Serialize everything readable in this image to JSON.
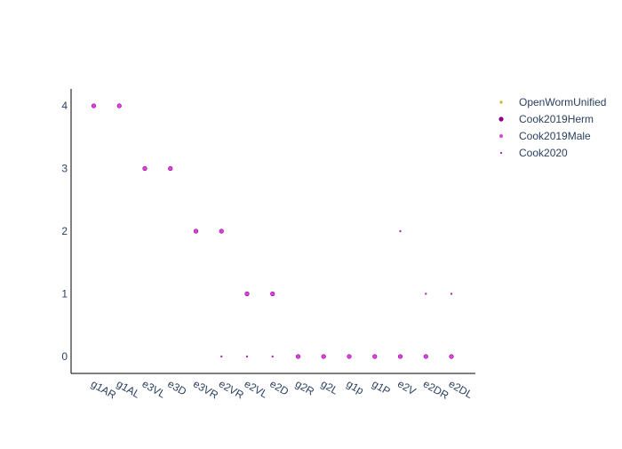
{
  "chart_data": {
    "type": "scatter",
    "categories": [
      "g1AR",
      "g1AL",
      "e3VL",
      "e3D",
      "e3VR",
      "e2VR",
      "e2VL",
      "e2D",
      "g2R",
      "g2L",
      "g1p",
      "g1P",
      "e2V",
      "e2DR",
      "e2DL"
    ],
    "yticks": [
      0,
      1,
      2,
      3,
      4
    ],
    "ylim": [
      -0.27,
      4.27
    ],
    "grid": false,
    "legend_position": "top-right",
    "series": [
      {
        "name": "OpenWormUnified",
        "color": "#bcbd22",
        "marker": "small-dot",
        "values": [
          null,
          null,
          null,
          null,
          null,
          null,
          null,
          null,
          null,
          null,
          null,
          null,
          null,
          null,
          null
        ]
      },
      {
        "name": "Cook2019Herm",
        "color": "#8b008b",
        "marker": "large-dot",
        "values": [
          4,
          4,
          3,
          3,
          2,
          2,
          1,
          1,
          0,
          0,
          0,
          0,
          0,
          0,
          0
        ]
      },
      {
        "name": "Cook2019Male",
        "color": "#e040e0",
        "marker": "medium-dot",
        "values": [
          4,
          4,
          3,
          3,
          2,
          2,
          1,
          1,
          0,
          0,
          0,
          0,
          0,
          0,
          0
        ]
      },
      {
        "name": "Cook2020",
        "color": "#b030b0",
        "marker": "tiny-dot",
        "values": [
          null,
          null,
          null,
          null,
          null,
          0,
          0,
          0,
          null,
          null,
          null,
          null,
          2,
          1,
          1
        ]
      }
    ]
  }
}
